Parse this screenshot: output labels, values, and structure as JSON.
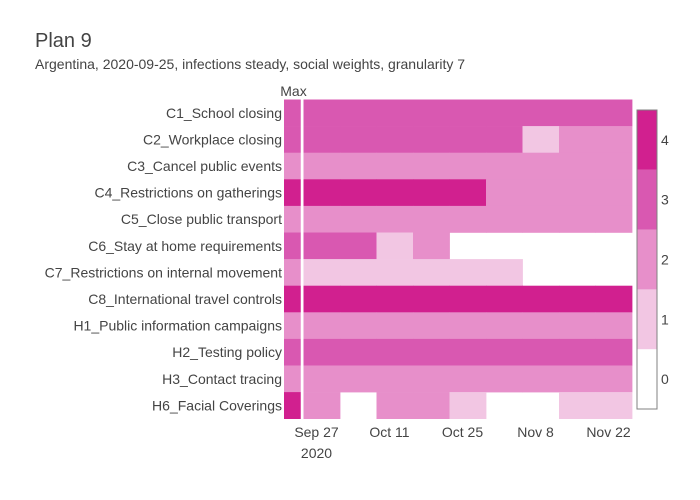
{
  "title": "Plan 9",
  "subtitle": "Argentina, 2020-09-25, infections steady, social weights, granularity 7",
  "colors": {
    "level_0": "#ffffff",
    "level_1": "#f2c6e3",
    "level_2": "#e78fca",
    "level_3": "#d958b1",
    "level_4": "#d1208f",
    "border": "#808080"
  },
  "chart_data": {
    "type": "heatmap",
    "max_column_label": "Max",
    "x_ticks": [
      "Sep 27",
      "Oct 11",
      "Oct 25",
      "Nov 8",
      "Nov 22"
    ],
    "x_year_label": "2020",
    "weeks": [
      "2020-09-25",
      "2020-10-02",
      "2020-10-09",
      "2020-10-16",
      "2020-10-23",
      "2020-10-30",
      "2020-11-06",
      "2020-11-13",
      "2020-11-20"
    ],
    "colorbar_ticks": [
      "0",
      "1",
      "2",
      "3",
      "4"
    ],
    "colorbar_range": [
      -0.5,
      4.5
    ],
    "rows": [
      {
        "name": "C1_School closing",
        "max": 3,
        "values": [
          3,
          3,
          3,
          3,
          3,
          3,
          3,
          3,
          3
        ]
      },
      {
        "name": "C2_Workplace closing",
        "max": 3,
        "values": [
          3,
          3,
          3,
          3,
          3,
          3,
          1,
          2,
          2
        ]
      },
      {
        "name": "C3_Cancel public events",
        "max": 2,
        "values": [
          2,
          2,
          2,
          2,
          2,
          2,
          2,
          2,
          2
        ]
      },
      {
        "name": "C4_Restrictions on gatherings",
        "max": 4,
        "values": [
          4,
          4,
          4,
          4,
          4,
          2,
          2,
          2,
          2
        ]
      },
      {
        "name": "C5_Close public transport",
        "max": 2,
        "values": [
          2,
          2,
          2,
          2,
          2,
          2,
          2,
          2,
          2
        ]
      },
      {
        "name": "C6_Stay at home requirements",
        "max": 3,
        "values": [
          3,
          3,
          1,
          2,
          null,
          null,
          null,
          null,
          null
        ]
      },
      {
        "name": "C7_Restrictions on internal movement",
        "max": 2,
        "values": [
          1,
          1,
          1,
          1,
          1,
          1,
          null,
          null,
          null
        ]
      },
      {
        "name": "C8_International travel controls",
        "max": 4,
        "values": [
          4,
          4,
          4,
          4,
          4,
          4,
          4,
          4,
          4
        ]
      },
      {
        "name": "H1_Public information campaigns",
        "max": 2,
        "values": [
          2,
          2,
          2,
          2,
          2,
          2,
          2,
          2,
          2
        ]
      },
      {
        "name": "H2_Testing policy",
        "max": 3,
        "values": [
          3,
          3,
          3,
          3,
          3,
          3,
          3,
          3,
          3
        ]
      },
      {
        "name": "H3_Contact tracing",
        "max": 2,
        "values": [
          2,
          2,
          2,
          2,
          2,
          2,
          2,
          2,
          2
        ]
      },
      {
        "name": "H6_Facial Coverings",
        "max": 4,
        "values": [
          2,
          null,
          2,
          2,
          1,
          null,
          null,
          1,
          1
        ]
      }
    ]
  }
}
